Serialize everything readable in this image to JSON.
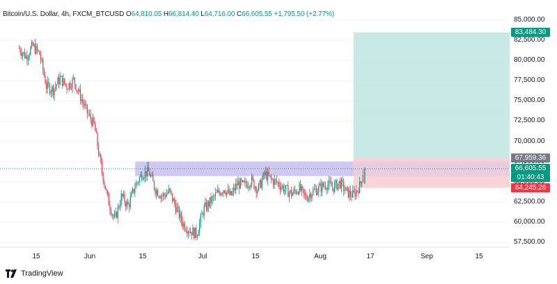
{
  "header": {
    "symbol": "Bitcoin/U.S. Dollar, 4h, FXCM_BTCUSD",
    "o_key": "O",
    "o_val": "64,810.05",
    "h_key": "H",
    "h_val": "66,814.40",
    "l_key": "L",
    "l_val": "64,716.00",
    "c_key": "C",
    "c_val": "66,605.55",
    "change": "+1,795.50 (+2.77%)"
  },
  "price_boxes": {
    "target": "83,484.30",
    "entry": "67,959.36",
    "current": "66,605.55",
    "countdown": "01:40:43",
    "stop": "64,245.26"
  },
  "colors": {
    "up": "#089981",
    "down": "#f23645",
    "profit_zone": "#b2dfdb",
    "loss_zone": "#f8c9cd",
    "resistance_zone": "#c9bfee",
    "target_box": "#089981",
    "entry_box": "#787b86",
    "current_box": "#089981",
    "stop_box": "#f23645"
  },
  "y_axis_labels": [
    "85,000.00",
    "82,500.00",
    "80,000.00",
    "77,500.00",
    "75,000.00",
    "72,500.00",
    "70,000.00",
    "67,500.00",
    "65,000.00",
    "62,500.00",
    "60,000.00",
    "57,500.00"
  ],
  "x_axis_labels": [
    "15",
    "Jun",
    "15",
    "Jul",
    "15",
    "Aug",
    "17",
    "Sep",
    "15"
  ],
  "branding": {
    "logo_icon": "tradingview-logo-icon",
    "name": "TradingView"
  },
  "chart_data": {
    "type": "candlestick",
    "timeframe": "4h",
    "ylim": [
      57000,
      86000
    ],
    "close_path": [
      {
        "x": "May 10",
        "y": 81500
      },
      {
        "x": "May 12",
        "y": 80500
      },
      {
        "x": "May 14",
        "y": 81800
      },
      {
        "x": "May 16",
        "y": 80800
      },
      {
        "x": "May 18",
        "y": 76800
      },
      {
        "x": "May 20",
        "y": 76400
      },
      {
        "x": "May 22",
        "y": 77800
      },
      {
        "x": "May 24",
        "y": 76800
      },
      {
        "x": "May 26",
        "y": 77600
      },
      {
        "x": "May 28",
        "y": 75500
      },
      {
        "x": "May 30",
        "y": 73500
      },
      {
        "x": "Jun 1",
        "y": 72000
      },
      {
        "x": "Jun 3",
        "y": 66800
      },
      {
        "x": "Jun 5",
        "y": 62800
      },
      {
        "x": "Jun 7",
        "y": 60200
      },
      {
        "x": "Jun 9",
        "y": 63200
      },
      {
        "x": "Jun 11",
        "y": 62000
      },
      {
        "x": "Jun 13",
        "y": 64500
      },
      {
        "x": "Jun 15",
        "y": 66000
      },
      {
        "x": "Jun 17",
        "y": 66200
      },
      {
        "x": "Jun 19",
        "y": 64000
      },
      {
        "x": "Jun 21",
        "y": 63200
      },
      {
        "x": "Jun 23",
        "y": 63800
      },
      {
        "x": "Jun 25",
        "y": 61800
      },
      {
        "x": "Jun 27",
        "y": 59800
      },
      {
        "x": "Jun 29",
        "y": 59000
      },
      {
        "x": "Jul 1",
        "y": 58500
      },
      {
        "x": "Jul 3",
        "y": 61500
      },
      {
        "x": "Jul 5",
        "y": 62500
      },
      {
        "x": "Jul 7",
        "y": 63500
      },
      {
        "x": "Jul 9",
        "y": 64200
      },
      {
        "x": "Jul 11",
        "y": 63200
      },
      {
        "x": "Jul 13",
        "y": 64800
      },
      {
        "x": "Jul 15",
        "y": 64500
      },
      {
        "x": "Jul 17",
        "y": 65200
      },
      {
        "x": "Jul 19",
        "y": 64000
      },
      {
        "x": "Jul 21",
        "y": 66000
      },
      {
        "x": "Jul 23",
        "y": 65200
      },
      {
        "x": "Jul 25",
        "y": 64800
      },
      {
        "x": "Jul 27",
        "y": 64000
      },
      {
        "x": "Jul 29",
        "y": 63500
      },
      {
        "x": "Jul 31",
        "y": 64200
      },
      {
        "x": "Aug 2",
        "y": 63000
      },
      {
        "x": "Aug 4",
        "y": 63800
      },
      {
        "x": "Aug 6",
        "y": 64200
      },
      {
        "x": "Aug 8",
        "y": 64700
      },
      {
        "x": "Aug 10",
        "y": 64300
      },
      {
        "x": "Aug 12",
        "y": 64900
      },
      {
        "x": "Aug 14",
        "y": 63700
      },
      {
        "x": "Aug 16",
        "y": 63300
      },
      {
        "x": "Aug 17",
        "y": 64000
      },
      {
        "x": "Aug 18",
        "y": 64600
      },
      {
        "x": "Aug 19",
        "y": 66605
      }
    ],
    "resistance_zone": [
      65700,
      67500
    ],
    "position": {
      "target": 83484.3,
      "entry": 67959.36,
      "stop": 64245.26,
      "start": "Aug 16",
      "end": "Aug 27"
    },
    "current_price": 66605.55
  }
}
